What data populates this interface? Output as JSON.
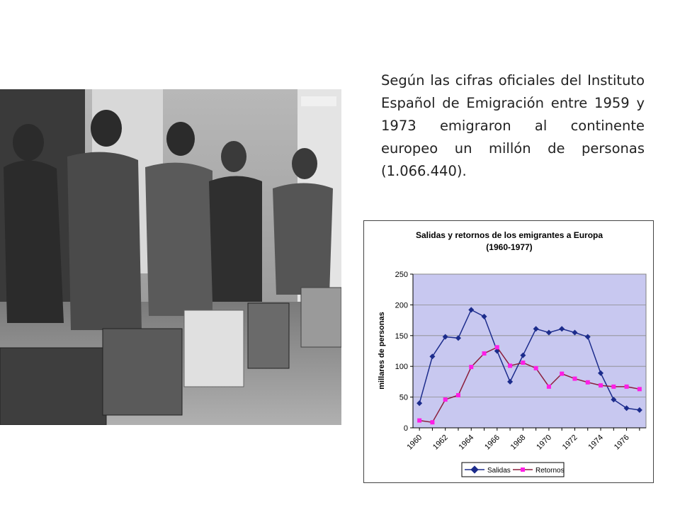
{
  "caption": "Según las cifras oficiales del Instituto Español de Emigración entre 1959 y 1973 emigraron al continente europeo un millón de personas (1.066.440).",
  "photo": {
    "subject": "Spanish emigrants waiting with suitcases"
  },
  "colors": {
    "plot_bg": "#c8c8f0",
    "salidas": "#1c2c8c",
    "retornos": "#8b1f3c",
    "retornos_marker": "#ff1ee6"
  },
  "chart_data": {
    "type": "line",
    "title": "Salidas y retornos de los emigrantes a Europa",
    "subtitle": "(1960-1977)",
    "ylabel": "millares de personas",
    "xlabel": "",
    "ylim": [
      0,
      250
    ],
    "yticks": [
      0,
      50,
      100,
      150,
      200,
      250
    ],
    "x": [
      1960,
      1961,
      1962,
      1963,
      1964,
      1965,
      1966,
      1967,
      1968,
      1969,
      1970,
      1971,
      1972,
      1973,
      1974,
      1975,
      1976,
      1977
    ],
    "xtick_labels": [
      "1960",
      "1962",
      "1964",
      "1966",
      "1968",
      "1970",
      "1972",
      "1974",
      "1976"
    ],
    "grid": true,
    "legend_position": "bottom",
    "series": [
      {
        "name": "Salidas",
        "marker": "diamond",
        "values": [
          40,
          116,
          148,
          146,
          192,
          181,
          125,
          75,
          118,
          161,
          155,
          161,
          155,
          148,
          89,
          46,
          32,
          29
        ]
      },
      {
        "name": "Retornos",
        "marker": "square",
        "values": [
          12,
          9,
          46,
          53,
          99,
          121,
          131,
          101,
          106,
          97,
          67,
          88,
          80,
          74,
          69,
          67,
          67,
          63
        ]
      }
    ]
  }
}
